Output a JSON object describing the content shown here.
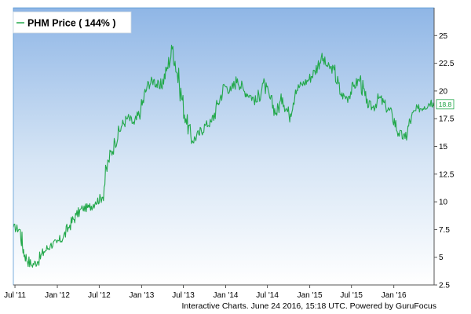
{
  "chart_data": {
    "type": "line",
    "legend": {
      "label": "PHM Price ( 144% )",
      "position": "top-left"
    },
    "last_value_label": "18.8",
    "colors": {
      "line": "#22a84a",
      "plot_top": "#8fb6e6",
      "plot_bottom": "#ffffff",
      "axis": "#555555",
      "frame": "#5b9bd5"
    },
    "grid": false,
    "ylim": [
      2.5,
      27.5
    ],
    "y_ticks": [
      2.5,
      5,
      7.5,
      10,
      12.5,
      15,
      17.5,
      20,
      22.5,
      25
    ],
    "y_tick_labels": [
      "2.5",
      "5",
      "7.5",
      "10",
      "12.5",
      "15",
      "17.5",
      "20",
      "22.5",
      "25"
    ],
    "xlim": [
      "2011-06-24",
      "2016-06-24"
    ],
    "x_ticks": [
      "2011-07-01",
      "2012-01-01",
      "2012-07-01",
      "2013-01-01",
      "2013-07-01",
      "2014-01-01",
      "2014-07-01",
      "2015-01-01",
      "2015-07-01",
      "2016-01-01"
    ],
    "x_tick_labels": [
      "Jul '11",
      "Jan '12",
      "Jul '12",
      "Jan '13",
      "Jul '13",
      "Jan '14",
      "Jul '14",
      "Jan '15",
      "Jul '15",
      "Jan '16"
    ],
    "series": [
      {
        "name": "PHM Price ( 144% )",
        "x": [
          "2011-06-24",
          "2011-07-22",
          "2011-08-12",
          "2011-09-09",
          "2011-10-07",
          "2011-11-04",
          "2011-12-02",
          "2011-12-30",
          "2012-01-27",
          "2012-02-24",
          "2012-03-23",
          "2012-04-20",
          "2012-05-18",
          "2012-06-15",
          "2012-07-13",
          "2012-08-10",
          "2012-09-07",
          "2012-10-05",
          "2012-11-02",
          "2012-11-30",
          "2012-12-28",
          "2013-01-25",
          "2013-02-22",
          "2013-03-22",
          "2013-04-19",
          "2013-05-17",
          "2013-06-14",
          "2013-07-12",
          "2013-08-09",
          "2013-09-06",
          "2013-10-04",
          "2013-11-01",
          "2013-11-29",
          "2013-12-27",
          "2014-01-24",
          "2014-02-21",
          "2014-03-21",
          "2014-04-18",
          "2014-05-16",
          "2014-06-13",
          "2014-07-11",
          "2014-08-08",
          "2014-09-05",
          "2014-10-03",
          "2014-10-31",
          "2014-11-28",
          "2014-12-26",
          "2015-01-23",
          "2015-02-20",
          "2015-03-20",
          "2015-04-17",
          "2015-05-15",
          "2015-06-12",
          "2015-07-10",
          "2015-08-07",
          "2015-09-04",
          "2015-10-02",
          "2015-10-30",
          "2015-11-27",
          "2015-12-25",
          "2016-01-22",
          "2016-02-19",
          "2016-03-18",
          "2016-04-15",
          "2016-05-13",
          "2016-06-10",
          "2016-06-24"
        ],
        "y": [
          7.7,
          7.5,
          5.2,
          4.3,
          4.6,
          5.5,
          6.1,
          6.3,
          6.8,
          7.9,
          8.8,
          9.4,
          9.5,
          10.0,
          10.4,
          13.7,
          15.4,
          16.8,
          17.6,
          17.0,
          18.2,
          20.5,
          21.0,
          20.2,
          21.8,
          24.0,
          20.5,
          17.5,
          15.5,
          16.1,
          16.9,
          17.2,
          18.9,
          20.5,
          20.0,
          21.1,
          20.0,
          19.6,
          19.0,
          20.7,
          19.4,
          18.0,
          19.4,
          17.8,
          20.1,
          20.6,
          21.0,
          21.8,
          23.0,
          22.2,
          21.9,
          19.7,
          19.4,
          20.4,
          21.1,
          18.9,
          18.5,
          19.4,
          18.6,
          17.9,
          16.2,
          15.7,
          17.7,
          18.4,
          18.6,
          19.1,
          18.8
        ]
      }
    ]
  },
  "footer": "Interactive Charts. June 24 2016, 15:18 UTC. Powered by GuruFocus"
}
